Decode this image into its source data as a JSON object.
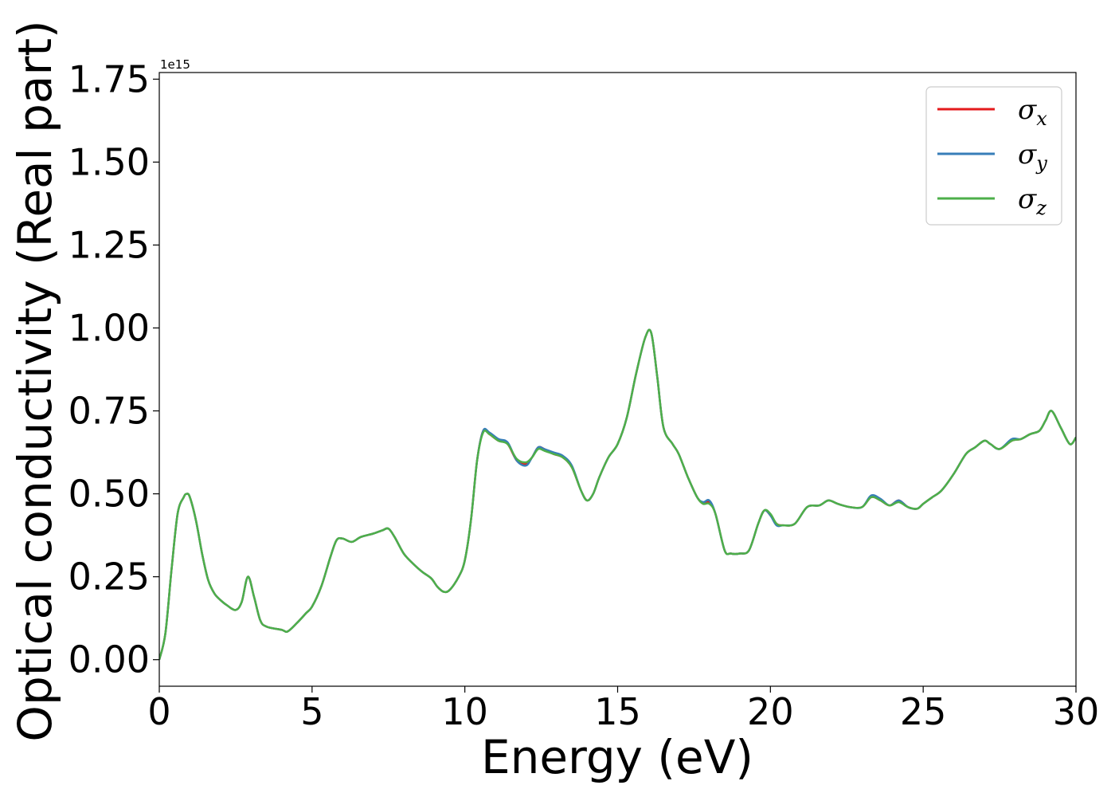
{
  "chart_data": {
    "type": "line",
    "xlabel": "Energy (eV)",
    "ylabel": "Optical conductivity (Real part)",
    "y_offset_text": "1e15",
    "xlim": [
      0,
      30
    ],
    "ylim": [
      -0.08,
      1.77
    ],
    "x_ticks": [
      0,
      5,
      10,
      15,
      20,
      25,
      30
    ],
    "x_tick_labels": [
      "0",
      "5",
      "10",
      "15",
      "20",
      "25",
      "30"
    ],
    "y_ticks": [
      0.0,
      0.25,
      0.5,
      0.75,
      1.0,
      1.25,
      1.5,
      1.75
    ],
    "y_tick_labels": [
      "0.00",
      "0.25",
      "0.50",
      "0.75",
      "1.00",
      "1.25",
      "1.50",
      "1.75"
    ],
    "grid": false,
    "legend_position": "top-right",
    "series": [
      {
        "name": "σx",
        "label_base": "σ",
        "label_sub": "x",
        "color": "#e41a1c",
        "x": [
          0,
          0.2,
          0.4,
          0.6,
          0.8,
          0.9,
          1.0,
          1.2,
          1.4,
          1.6,
          1.8,
          2.0,
          2.2,
          2.5,
          2.7,
          2.9,
          3.1,
          3.3,
          3.5,
          4.0,
          4.2,
          4.5,
          4.8,
          5.0,
          5.3,
          5.6,
          5.8,
          6.0,
          6.3,
          6.6,
          7.0,
          7.3,
          7.5,
          7.7,
          8.0,
          8.3,
          8.6,
          8.9,
          9.1,
          9.3,
          9.5,
          9.8,
          10.0,
          10.2,
          10.4,
          10.6,
          10.8,
          11.1,
          11.4,
          11.7,
          12.0,
          12.2,
          12.4,
          12.6,
          12.9,
          13.2,
          13.5,
          13.8,
          14.0,
          14.2,
          14.4,
          14.7,
          15.0,
          15.3,
          15.6,
          15.9,
          16.1,
          16.3,
          16.5,
          16.8,
          17.0,
          17.3,
          17.6,
          17.8,
          18.0,
          18.2,
          18.5,
          18.7,
          19.0,
          19.3,
          19.6,
          19.8,
          20.0,
          20.2,
          20.4,
          20.8,
          21.2,
          21.6,
          21.9,
          22.2,
          22.6,
          23.0,
          23.3,
          23.6,
          23.9,
          24.2,
          24.5,
          24.8,
          25.0,
          25.3,
          25.6,
          26.0,
          26.4,
          26.7,
          27.0,
          27.2,
          27.5,
          27.9,
          28.2,
          28.5,
          28.8,
          29.0,
          29.2,
          29.5,
          29.8,
          30.0
        ],
        "values": [
          0.0,
          0.08,
          0.27,
          0.44,
          0.49,
          0.5,
          0.49,
          0.42,
          0.32,
          0.24,
          0.2,
          0.18,
          0.165,
          0.15,
          0.175,
          0.25,
          0.19,
          0.12,
          0.1,
          0.09,
          0.085,
          0.11,
          0.14,
          0.16,
          0.22,
          0.31,
          0.36,
          0.365,
          0.355,
          0.37,
          0.38,
          0.39,
          0.395,
          0.37,
          0.32,
          0.29,
          0.265,
          0.245,
          0.22,
          0.205,
          0.21,
          0.25,
          0.3,
          0.42,
          0.6,
          0.69,
          0.68,
          0.66,
          0.65,
          0.6,
          0.59,
          0.61,
          0.64,
          0.635,
          0.62,
          0.61,
          0.58,
          0.51,
          0.48,
          0.5,
          0.55,
          0.61,
          0.65,
          0.73,
          0.86,
          0.97,
          0.985,
          0.85,
          0.7,
          0.65,
          0.62,
          0.55,
          0.49,
          0.47,
          0.475,
          0.44,
          0.33,
          0.32,
          0.32,
          0.33,
          0.41,
          0.45,
          0.435,
          0.41,
          0.405,
          0.41,
          0.46,
          0.465,
          0.48,
          0.47,
          0.46,
          0.46,
          0.49,
          0.48,
          0.465,
          0.48,
          0.46,
          0.455,
          0.47,
          0.49,
          0.51,
          0.56,
          0.62,
          0.64,
          0.66,
          0.65,
          0.635,
          0.66,
          0.665,
          0.68,
          0.69,
          0.72,
          0.75,
          0.7,
          0.65,
          0.67
        ]
      },
      {
        "name": "σy",
        "label_base": "σ",
        "label_sub": "y",
        "color": "#377eb8",
        "x": [
          0,
          0.2,
          0.4,
          0.6,
          0.8,
          0.9,
          1.0,
          1.2,
          1.4,
          1.6,
          1.8,
          2.0,
          2.2,
          2.5,
          2.7,
          2.9,
          3.1,
          3.3,
          3.5,
          4.0,
          4.2,
          4.5,
          4.8,
          5.0,
          5.3,
          5.6,
          5.8,
          6.0,
          6.3,
          6.6,
          7.0,
          7.3,
          7.5,
          7.7,
          8.0,
          8.3,
          8.6,
          8.9,
          9.1,
          9.3,
          9.5,
          9.8,
          10.0,
          10.2,
          10.4,
          10.6,
          10.8,
          11.1,
          11.4,
          11.7,
          12.0,
          12.2,
          12.4,
          12.6,
          12.9,
          13.2,
          13.5,
          13.8,
          14.0,
          14.2,
          14.4,
          14.7,
          15.0,
          15.3,
          15.6,
          15.9,
          16.1,
          16.3,
          16.5,
          16.8,
          17.0,
          17.3,
          17.6,
          17.8,
          18.0,
          18.2,
          18.5,
          18.7,
          19.0,
          19.3,
          19.6,
          19.8,
          20.0,
          20.2,
          20.4,
          20.8,
          21.2,
          21.6,
          21.9,
          22.2,
          22.6,
          23.0,
          23.3,
          23.6,
          23.9,
          24.2,
          24.5,
          24.8,
          25.0,
          25.3,
          25.6,
          26.0,
          26.4,
          26.7,
          27.0,
          27.2,
          27.5,
          27.9,
          28.2,
          28.5,
          28.8,
          29.0,
          29.2,
          29.5,
          29.8,
          30.0
        ],
        "values": [
          0.0,
          0.08,
          0.27,
          0.44,
          0.49,
          0.5,
          0.49,
          0.42,
          0.32,
          0.24,
          0.2,
          0.18,
          0.165,
          0.15,
          0.175,
          0.25,
          0.19,
          0.12,
          0.1,
          0.09,
          0.085,
          0.11,
          0.14,
          0.16,
          0.22,
          0.31,
          0.36,
          0.365,
          0.355,
          0.37,
          0.38,
          0.39,
          0.395,
          0.37,
          0.32,
          0.29,
          0.265,
          0.245,
          0.22,
          0.205,
          0.21,
          0.25,
          0.3,
          0.42,
          0.6,
          0.69,
          0.685,
          0.665,
          0.655,
          0.6,
          0.585,
          0.61,
          0.64,
          0.635,
          0.625,
          0.615,
          0.585,
          0.51,
          0.48,
          0.5,
          0.55,
          0.61,
          0.65,
          0.73,
          0.86,
          0.97,
          0.985,
          0.85,
          0.7,
          0.65,
          0.62,
          0.55,
          0.49,
          0.475,
          0.48,
          0.44,
          0.33,
          0.32,
          0.32,
          0.33,
          0.41,
          0.45,
          0.435,
          0.405,
          0.405,
          0.41,
          0.46,
          0.465,
          0.48,
          0.47,
          0.46,
          0.46,
          0.495,
          0.485,
          0.465,
          0.48,
          0.46,
          0.455,
          0.47,
          0.49,
          0.51,
          0.56,
          0.62,
          0.64,
          0.66,
          0.65,
          0.635,
          0.665,
          0.665,
          0.68,
          0.69,
          0.72,
          0.75,
          0.7,
          0.65,
          0.67
        ]
      },
      {
        "name": "σz",
        "label_base": "σ",
        "label_sub": "z",
        "color": "#4daf4a",
        "x": [
          0,
          0.2,
          0.4,
          0.6,
          0.8,
          0.9,
          1.0,
          1.2,
          1.4,
          1.6,
          1.8,
          2.0,
          2.2,
          2.5,
          2.7,
          2.9,
          3.1,
          3.3,
          3.5,
          4.0,
          4.2,
          4.5,
          4.8,
          5.0,
          5.3,
          5.6,
          5.8,
          6.0,
          6.3,
          6.6,
          7.0,
          7.3,
          7.5,
          7.7,
          8.0,
          8.3,
          8.6,
          8.9,
          9.1,
          9.3,
          9.5,
          9.8,
          10.0,
          10.2,
          10.4,
          10.6,
          10.8,
          11.1,
          11.4,
          11.7,
          12.0,
          12.2,
          12.4,
          12.6,
          12.9,
          13.2,
          13.5,
          13.8,
          14.0,
          14.2,
          14.4,
          14.7,
          15.0,
          15.3,
          15.6,
          15.9,
          16.1,
          16.3,
          16.5,
          16.8,
          17.0,
          17.3,
          17.6,
          17.8,
          18.0,
          18.2,
          18.5,
          18.7,
          19.0,
          19.3,
          19.6,
          19.8,
          20.0,
          20.2,
          20.4,
          20.8,
          21.2,
          21.6,
          21.9,
          22.2,
          22.6,
          23.0,
          23.3,
          23.6,
          23.9,
          24.2,
          24.5,
          24.8,
          25.0,
          25.3,
          25.6,
          26.0,
          26.4,
          26.7,
          27.0,
          27.2,
          27.5,
          27.9,
          28.2,
          28.5,
          28.8,
          29.0,
          29.2,
          29.5,
          29.8,
          30.0
        ],
        "values": [
          0.0,
          0.08,
          0.27,
          0.44,
          0.49,
          0.5,
          0.49,
          0.42,
          0.32,
          0.24,
          0.2,
          0.18,
          0.165,
          0.15,
          0.175,
          0.25,
          0.19,
          0.12,
          0.1,
          0.09,
          0.085,
          0.11,
          0.14,
          0.16,
          0.22,
          0.31,
          0.36,
          0.365,
          0.355,
          0.37,
          0.38,
          0.39,
          0.395,
          0.37,
          0.32,
          0.29,
          0.265,
          0.245,
          0.22,
          0.205,
          0.21,
          0.25,
          0.3,
          0.42,
          0.6,
          0.685,
          0.68,
          0.66,
          0.65,
          0.605,
          0.595,
          0.61,
          0.635,
          0.63,
          0.62,
          0.61,
          0.58,
          0.51,
          0.48,
          0.5,
          0.55,
          0.61,
          0.65,
          0.73,
          0.86,
          0.97,
          0.985,
          0.85,
          0.7,
          0.65,
          0.62,
          0.55,
          0.49,
          0.47,
          0.47,
          0.44,
          0.33,
          0.32,
          0.32,
          0.33,
          0.41,
          0.45,
          0.44,
          0.41,
          0.405,
          0.41,
          0.46,
          0.465,
          0.48,
          0.47,
          0.46,
          0.46,
          0.49,
          0.48,
          0.465,
          0.475,
          0.46,
          0.455,
          0.47,
          0.49,
          0.51,
          0.56,
          0.62,
          0.64,
          0.66,
          0.65,
          0.635,
          0.66,
          0.665,
          0.68,
          0.69,
          0.72,
          0.75,
          0.7,
          0.65,
          0.67
        ]
      }
    ]
  }
}
